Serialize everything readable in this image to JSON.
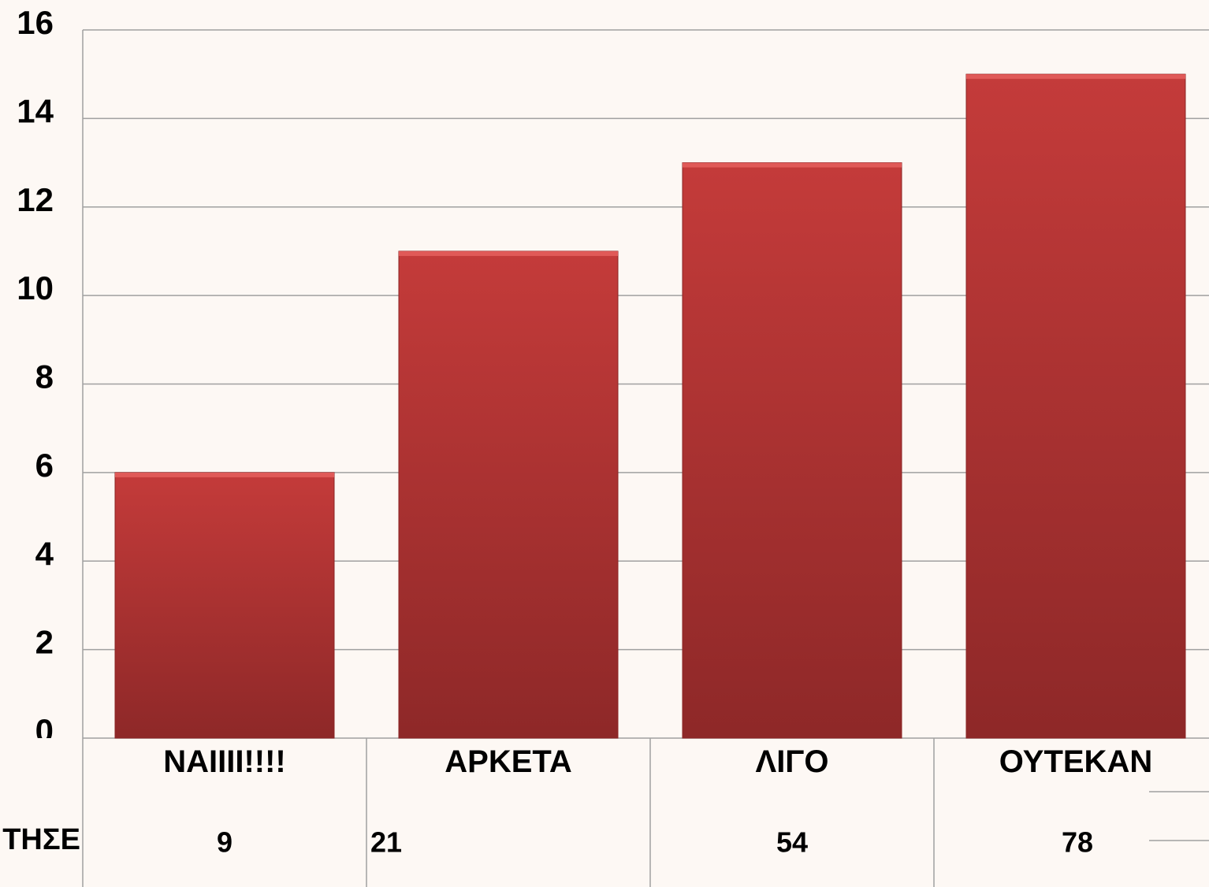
{
  "chart_data": {
    "type": "bar",
    "categories": [
      "ΝΑΙΙΙΙ!!!!",
      "ΑΡΚΕΤΑ",
      "ΛΙΓΟ",
      "ΟΥΤΕΚΑΝ"
    ],
    "values": [
      6,
      11,
      13,
      15
    ],
    "color": "#b83333",
    "ylim": [
      0,
      16
    ],
    "yticks": [
      0,
      2,
      4,
      6,
      8,
      10,
      12,
      14,
      16
    ],
    "grid": true,
    "table_row": {
      "label": "ΤΗΣΕ",
      "values": [
        "9",
        "21",
        "54",
        "78"
      ]
    }
  }
}
